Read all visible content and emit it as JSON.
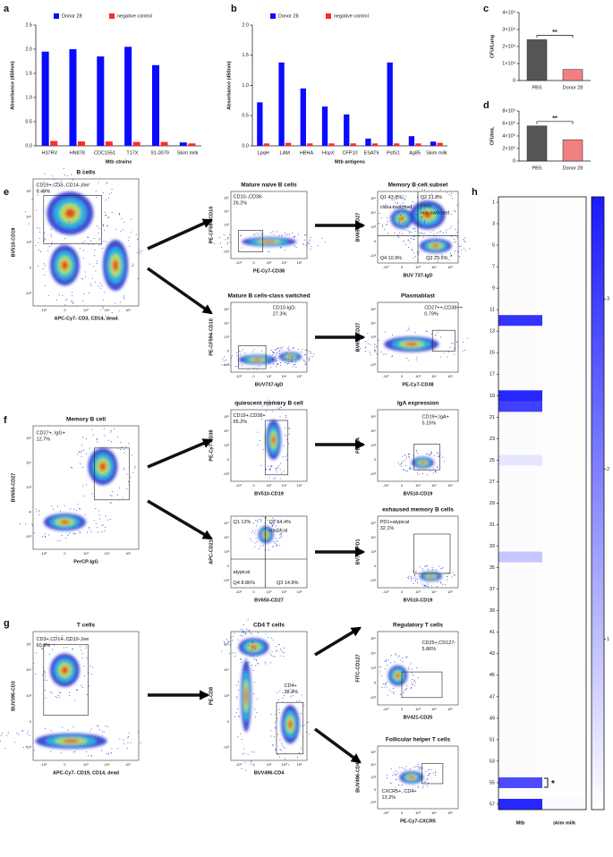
{
  "chart_data": [
    {
      "type": "bar",
      "panel": "a",
      "ylabel": "Absorbance (450nm)",
      "xlabel": "Mtb strains",
      "categories": [
        "H37RV",
        "HN878",
        "CDC1551",
        "T17X",
        "91-0079",
        "Skim milk"
      ],
      "series": [
        {
          "name": "Donor 28",
          "color": "#0a0aff",
          "values": [
            1.95,
            2.0,
            1.85,
            2.05,
            1.67,
            0.07
          ]
        },
        {
          "name": "negative control",
          "color": "#ff2a2a",
          "values": [
            0.1,
            0.09,
            0.09,
            0.08,
            0.08,
            0.05
          ]
        }
      ],
      "ylim": [
        0,
        2.5
      ],
      "yticks": [
        {
          "value": 0,
          "label": "0.0"
        },
        0.5,
        {
          "value": 1,
          "label": "1.0"
        },
        1.5,
        {
          "value": 2,
          "label": "2.0"
        },
        2.5
      ],
      "legend": "top"
    },
    {
      "type": "bar",
      "panel": "b",
      "ylabel": "Absorbance (450nm)",
      "xlabel": "Mtb antigens",
      "categories": [
        "LpqH",
        "LAM",
        "HBHA",
        "HspX",
        "CFP10",
        "ESAT6",
        "PstS1",
        "Ag85",
        "Skim milk"
      ],
      "series": [
        {
          "name": "Donor 28",
          "color": "#0a0aff",
          "values": [
            0.72,
            1.38,
            0.95,
            0.65,
            0.52,
            0.12,
            1.38,
            0.16,
            0.07
          ]
        },
        {
          "name": "negative control",
          "color": "#ff2a2a",
          "values": [
            0.04,
            0.05,
            0.04,
            0.04,
            0.04,
            0.04,
            0.04,
            0.04,
            0.05
          ]
        }
      ],
      "ylim": [
        0,
        2.0
      ],
      "yticks": [
        {
          "value": 0,
          "label": "0.0"
        },
        0.5,
        {
          "value": 1,
          "label": "1.0"
        },
        1.5,
        {
          "value": 2,
          "label": "2.0"
        }
      ],
      "legend": "top"
    },
    {
      "type": "bar",
      "panel": "c",
      "ylabel": "CFU/Lung",
      "annotation": "**",
      "categories": [
        "PBS",
        "Donor 28"
      ],
      "values": [
        24000,
        6500
      ],
      "colors": [
        "#555555",
        "#f28080"
      ],
      "ylim": [
        0,
        40000
      ],
      "yticks": [
        0,
        {
          "value": 10000,
          "label": "1×10⁴"
        },
        {
          "value": 20000,
          "label": "2×10⁴"
        },
        {
          "value": 30000,
          "label": "3×10⁴"
        },
        {
          "value": 40000,
          "label": "4×10⁴"
        }
      ]
    },
    {
      "type": "bar",
      "panel": "d",
      "ylabel": "CFU/mL",
      "annotation": "**",
      "categories": [
        "PBS",
        "Donor 28"
      ],
      "values": [
        560000,
        340000
      ],
      "colors": [
        "#555555",
        "#f28080"
      ],
      "ylim": [
        0,
        800000
      ],
      "yticks": [
        0,
        {
          "value": 200000,
          "label": "2×10⁵"
        },
        {
          "value": 400000,
          "label": "4×10⁵"
        },
        {
          "value": 600000,
          "label": "6×10⁵"
        },
        {
          "value": 800000,
          "label": "8×10⁵"
        }
      ]
    },
    {
      "type": "heatmap",
      "panel": "h",
      "annotation": "*",
      "color": "#1a1aff",
      "categories": [
        1,
        null,
        3,
        null,
        5,
        null,
        7,
        null,
        9,
        null,
        11,
        null,
        13,
        null,
        15,
        null,
        17,
        null,
        19,
        null,
        21,
        null,
        23,
        null,
        25,
        null,
        27,
        null,
        29,
        null,
        31,
        null,
        33,
        null,
        35,
        null,
        37,
        null,
        39,
        null,
        41,
        null,
        43,
        null,
        45,
        null,
        47,
        null,
        49,
        null,
        51,
        null,
        53,
        null,
        55,
        null,
        57
      ],
      "series": [
        {
          "name": "Mtb",
          "values": [
            0.05,
            0.05,
            0.05,
            0.05,
            0.05,
            0.05,
            0.05,
            0.05,
            0.05,
            0.05,
            0.05,
            3.2,
            0.05,
            0.05,
            0.05,
            0.05,
            0.05,
            0.05,
            3.4,
            3.0,
            0.05,
            0.05,
            0.05,
            0.05,
            0.4,
            0.05,
            0.05,
            0.05,
            0.05,
            0.05,
            0.05,
            0.05,
            0.05,
            0.9,
            0.05,
            0.05,
            0.05,
            0.05,
            0.05,
            0.05,
            0.05,
            0.05,
            0.05,
            0.05,
            0.05,
            0.05,
            0.05,
            0.05,
            0.05,
            0.05,
            0.05,
            0.05,
            0.05,
            0.05,
            2.8,
            0.05,
            3.4
          ]
        },
        {
          "name": "skim milk",
          "values": [
            0.02,
            0.02,
            0.02,
            0.02,
            0.02,
            0.02,
            0.02,
            0.02,
            0.02,
            0.02,
            0.02,
            0.02,
            0.02,
            0.02,
            0.02,
            0.02,
            0.02,
            0.02,
            0.02,
            0.02,
            0.02,
            0.02,
            0.02,
            0.02,
            0.02,
            0.02,
            0.02,
            0.02,
            0.02,
            0.02,
            0.02,
            0.02,
            0.02,
            0.02,
            0.02,
            0.02,
            0.02,
            0.02,
            0.02,
            0.02,
            0.02,
            0.02,
            0.02,
            0.02,
            0.02,
            0.02,
            0.02,
            0.02,
            0.02,
            0.02,
            0.02,
            0.02,
            0.02,
            0.02,
            0.02,
            0.02,
            0.1
          ]
        }
      ],
      "clim": [
        0,
        3.6
      ],
      "cticks": [
        1,
        2,
        3
      ]
    }
  ],
  "flow_ticks": [
    "-10³",
    "0",
    "10³",
    "10⁴",
    "10⁵"
  ],
  "flow": [
    {
      "panel": "e",
      "plots": [
        {
          "title": "B cells",
          "ylabel": "BV510-CD19",
          "xlabel": "APC-Cy7- CD3, CD14, dead",
          "labels": [
            "CD19+,CD3-,CD14-,live",
            "9.49%"
          ]
        },
        {
          "title": "Mature naive B cells",
          "ylabel": "PE-CF594-CD10",
          "xlabel": "PE-Cy7-CD38",
          "labels": [
            "CD10-,CD38-",
            "26.2%"
          ]
        },
        {
          "title": "Memory B cell subset",
          "ylabel": "BV650-CD27",
          "xlabel": "BUV 737-IgD",
          "labels": [
            "Q1  43.8%",
            "class-switched",
            "Q2  21.8%",
            "class",
            "non-switched",
            "Q4  10.9%",
            "Q3  23.5%"
          ]
        },
        {
          "title": "Mature B cells-class switched",
          "ylabel": "PE-CF594-CD10",
          "xlabel": "BUV737-IgD",
          "labels": [
            "CD10-IgD-",
            "27.3%"
          ]
        },
        {
          "title": "Plasmablast",
          "ylabel": "BV650-CD27",
          "xlabel": "PE-Cy7-CD38",
          "labels": [
            "CD27++,CD38++",
            "0.79%"
          ]
        }
      ]
    },
    {
      "panel": "f",
      "plots": [
        {
          "title": "Memory B cell",
          "ylabel": "BV650-CD27",
          "xlabel": "PerCP-IgG",
          "labels": [
            "CD27+, IgG+",
            "12.7%"
          ]
        },
        {
          "title": "quiescent memory B cell",
          "ylabel": "PE-Cy7-CD38",
          "xlabel": "BV510-CD19",
          "labels": [
            "CD19+,CD38+",
            "95.2%"
          ]
        },
        {
          "title": "IgA expression",
          "ylabel": "PE-IgA",
          "xlabel": "BV510-CD19",
          "labels": [
            "CD19+,IgA+",
            "5.15%"
          ]
        },
        {
          "ylabel": "APC-CD21",
          "xlabel": "BV650-CD27",
          "labels": [
            "Q1  12%",
            "Q2  64.4%",
            "classical",
            "atypical",
            "Q4  8.86%",
            "Q3  14.8%"
          ]
        },
        {
          "title": "exhaused memory B cells",
          "ylabel": "BV711-PD1",
          "xlabel": "BV510-CD19",
          "labels": [
            "PD1+atypical",
            "32.1%"
          ]
        }
      ]
    },
    {
      "panel": "g",
      "plots": [
        {
          "title": "T cells",
          "ylabel": "BUV395-CD3",
          "xlabel": "APC-Cy7- CD19, CD14, dead",
          "labels": [
            "CD3+,CD14-,CD19-,live",
            "60.3%"
          ]
        },
        {
          "title": "CD4 T cells",
          "ylabel": "PE-CD8",
          "xlabel": "BUV496-CD4",
          "labels": [
            "CD4+",
            "38.4%"
          ]
        },
        {
          "title": "Regulatory T cells",
          "ylabel": "FITC-CD127",
          "xlabel": "BV421-CD25",
          "labels": [
            "CD25+,CD127-",
            "5.86%"
          ]
        },
        {
          "title": "Follicular helper T cells",
          "ylabel": "BUV496-CD4",
          "xlabel": "PE-Cy7-CXCR5",
          "labels": [
            "CXCR5+, CD4+",
            "13.2%"
          ]
        }
      ]
    }
  ]
}
